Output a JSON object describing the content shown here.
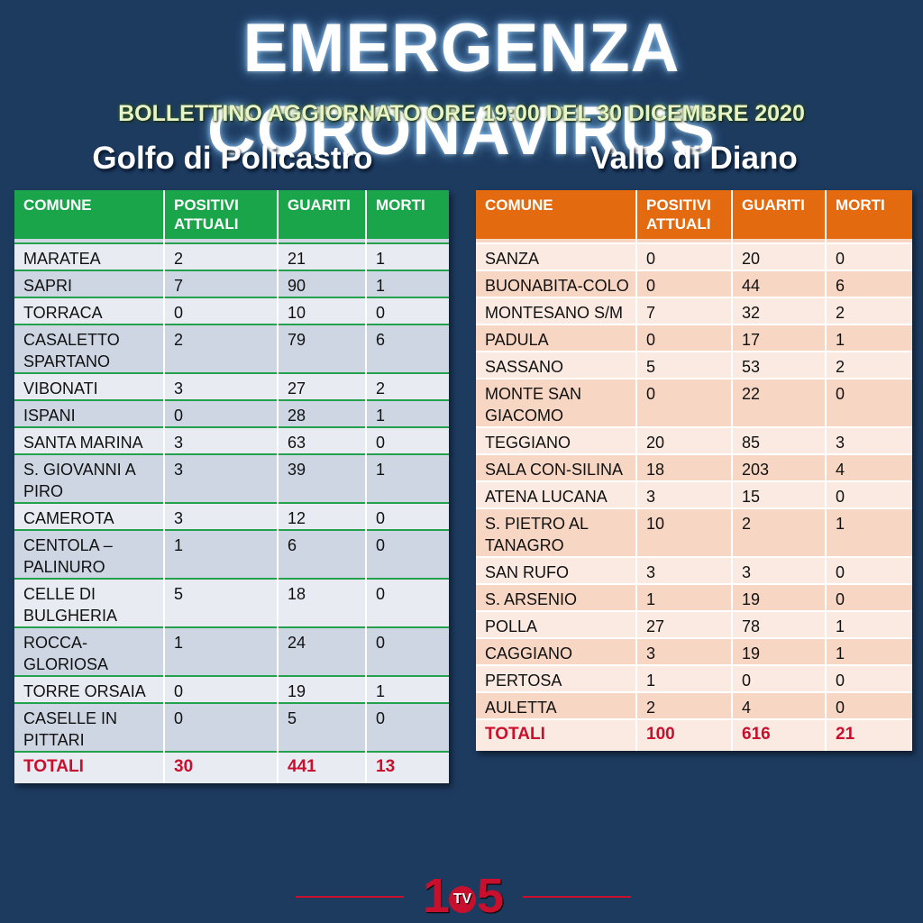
{
  "header": {
    "title": "EMERGENZA CORONAVIRUS",
    "subtitle": "BOLLETTINO AGGIORNATO ORE 19:00 DEL 30 DICEMBRE 2020"
  },
  "left": {
    "title": "Golfo di Policastro",
    "header_color": "#1aa54a",
    "columns": [
      "COMUNE",
      "POSITIVI ATTUALI",
      "GUARITI",
      "MORTI"
    ],
    "rows": [
      [
        "MARATEA",
        "2",
        "21",
        "1"
      ],
      [
        "SAPRI",
        "7",
        "90",
        "1"
      ],
      [
        "TORRACA",
        "0",
        "10",
        "0"
      ],
      [
        "CASALETTO SPARTANO",
        "2",
        "79",
        "6"
      ],
      [
        "VIBONATI",
        "3",
        "27",
        "2"
      ],
      [
        "ISPANI",
        "0",
        "28",
        "1"
      ],
      [
        "SANTA MARINA",
        "3",
        "63",
        "0"
      ],
      [
        "S. GIOVANNI A PIRO",
        "3",
        "39",
        "1"
      ],
      [
        "CAMEROTA",
        "3",
        "12",
        "0"
      ],
      [
        "CENTOLA – PALINURO",
        "1",
        "6",
        "0"
      ],
      [
        "CELLE DI BULGHERIA",
        "5",
        "18",
        "0"
      ],
      [
        "ROCCA-GLORIOSA",
        "1",
        "24",
        "0"
      ],
      [
        "TORRE ORSAIA",
        "0",
        "19",
        "1"
      ],
      [
        "CASELLE IN PITTARI",
        "0",
        "5",
        "0"
      ]
    ],
    "totals": [
      "TOTALI",
      "30",
      "441",
      "13"
    ]
  },
  "right": {
    "title": "Vallo di Diano",
    "header_color": "#e46a10",
    "columns": [
      "COMUNE",
      "POSITIVI ATTUALI",
      "GUARITI",
      "MORTI"
    ],
    "rows": [
      [
        "SANZA",
        "0",
        "20",
        "0"
      ],
      [
        "BUONABITA-COLO",
        "0",
        "44",
        "6"
      ],
      [
        "MONTESANO S/M",
        "7",
        "32",
        "2"
      ],
      [
        "PADULA",
        "0",
        "17",
        "1"
      ],
      [
        "SASSANO",
        "5",
        "53",
        "2"
      ],
      [
        "MONTE SAN GIACOMO",
        "0",
        "22",
        "0"
      ],
      [
        "TEGGIANO",
        "20",
        "85",
        "3"
      ],
      [
        "SALA CON-SILINA",
        "18",
        "203",
        "4"
      ],
      [
        "ATENA LUCANA",
        "3",
        "15",
        "0"
      ],
      [
        "S. PIETRO AL TANAGRO",
        "10",
        "2",
        "1"
      ],
      [
        "SAN RUFO",
        "3",
        "3",
        "0"
      ],
      [
        "S. ARSENIO",
        "1",
        "19",
        "0"
      ],
      [
        "POLLA",
        "27",
        "78",
        "1"
      ],
      [
        "CAGGIANO",
        "3",
        "19",
        "1"
      ],
      [
        "PERTOSA",
        "1",
        "0",
        "0"
      ],
      [
        "AULETTA",
        "2",
        "4",
        "0"
      ]
    ],
    "totals": [
      "TOTALI",
      "100",
      "616",
      "21"
    ]
  },
  "logo": {
    "text_left": "1",
    "text_tv": "TV",
    "text_right": "5",
    "color": "#c8102e"
  }
}
